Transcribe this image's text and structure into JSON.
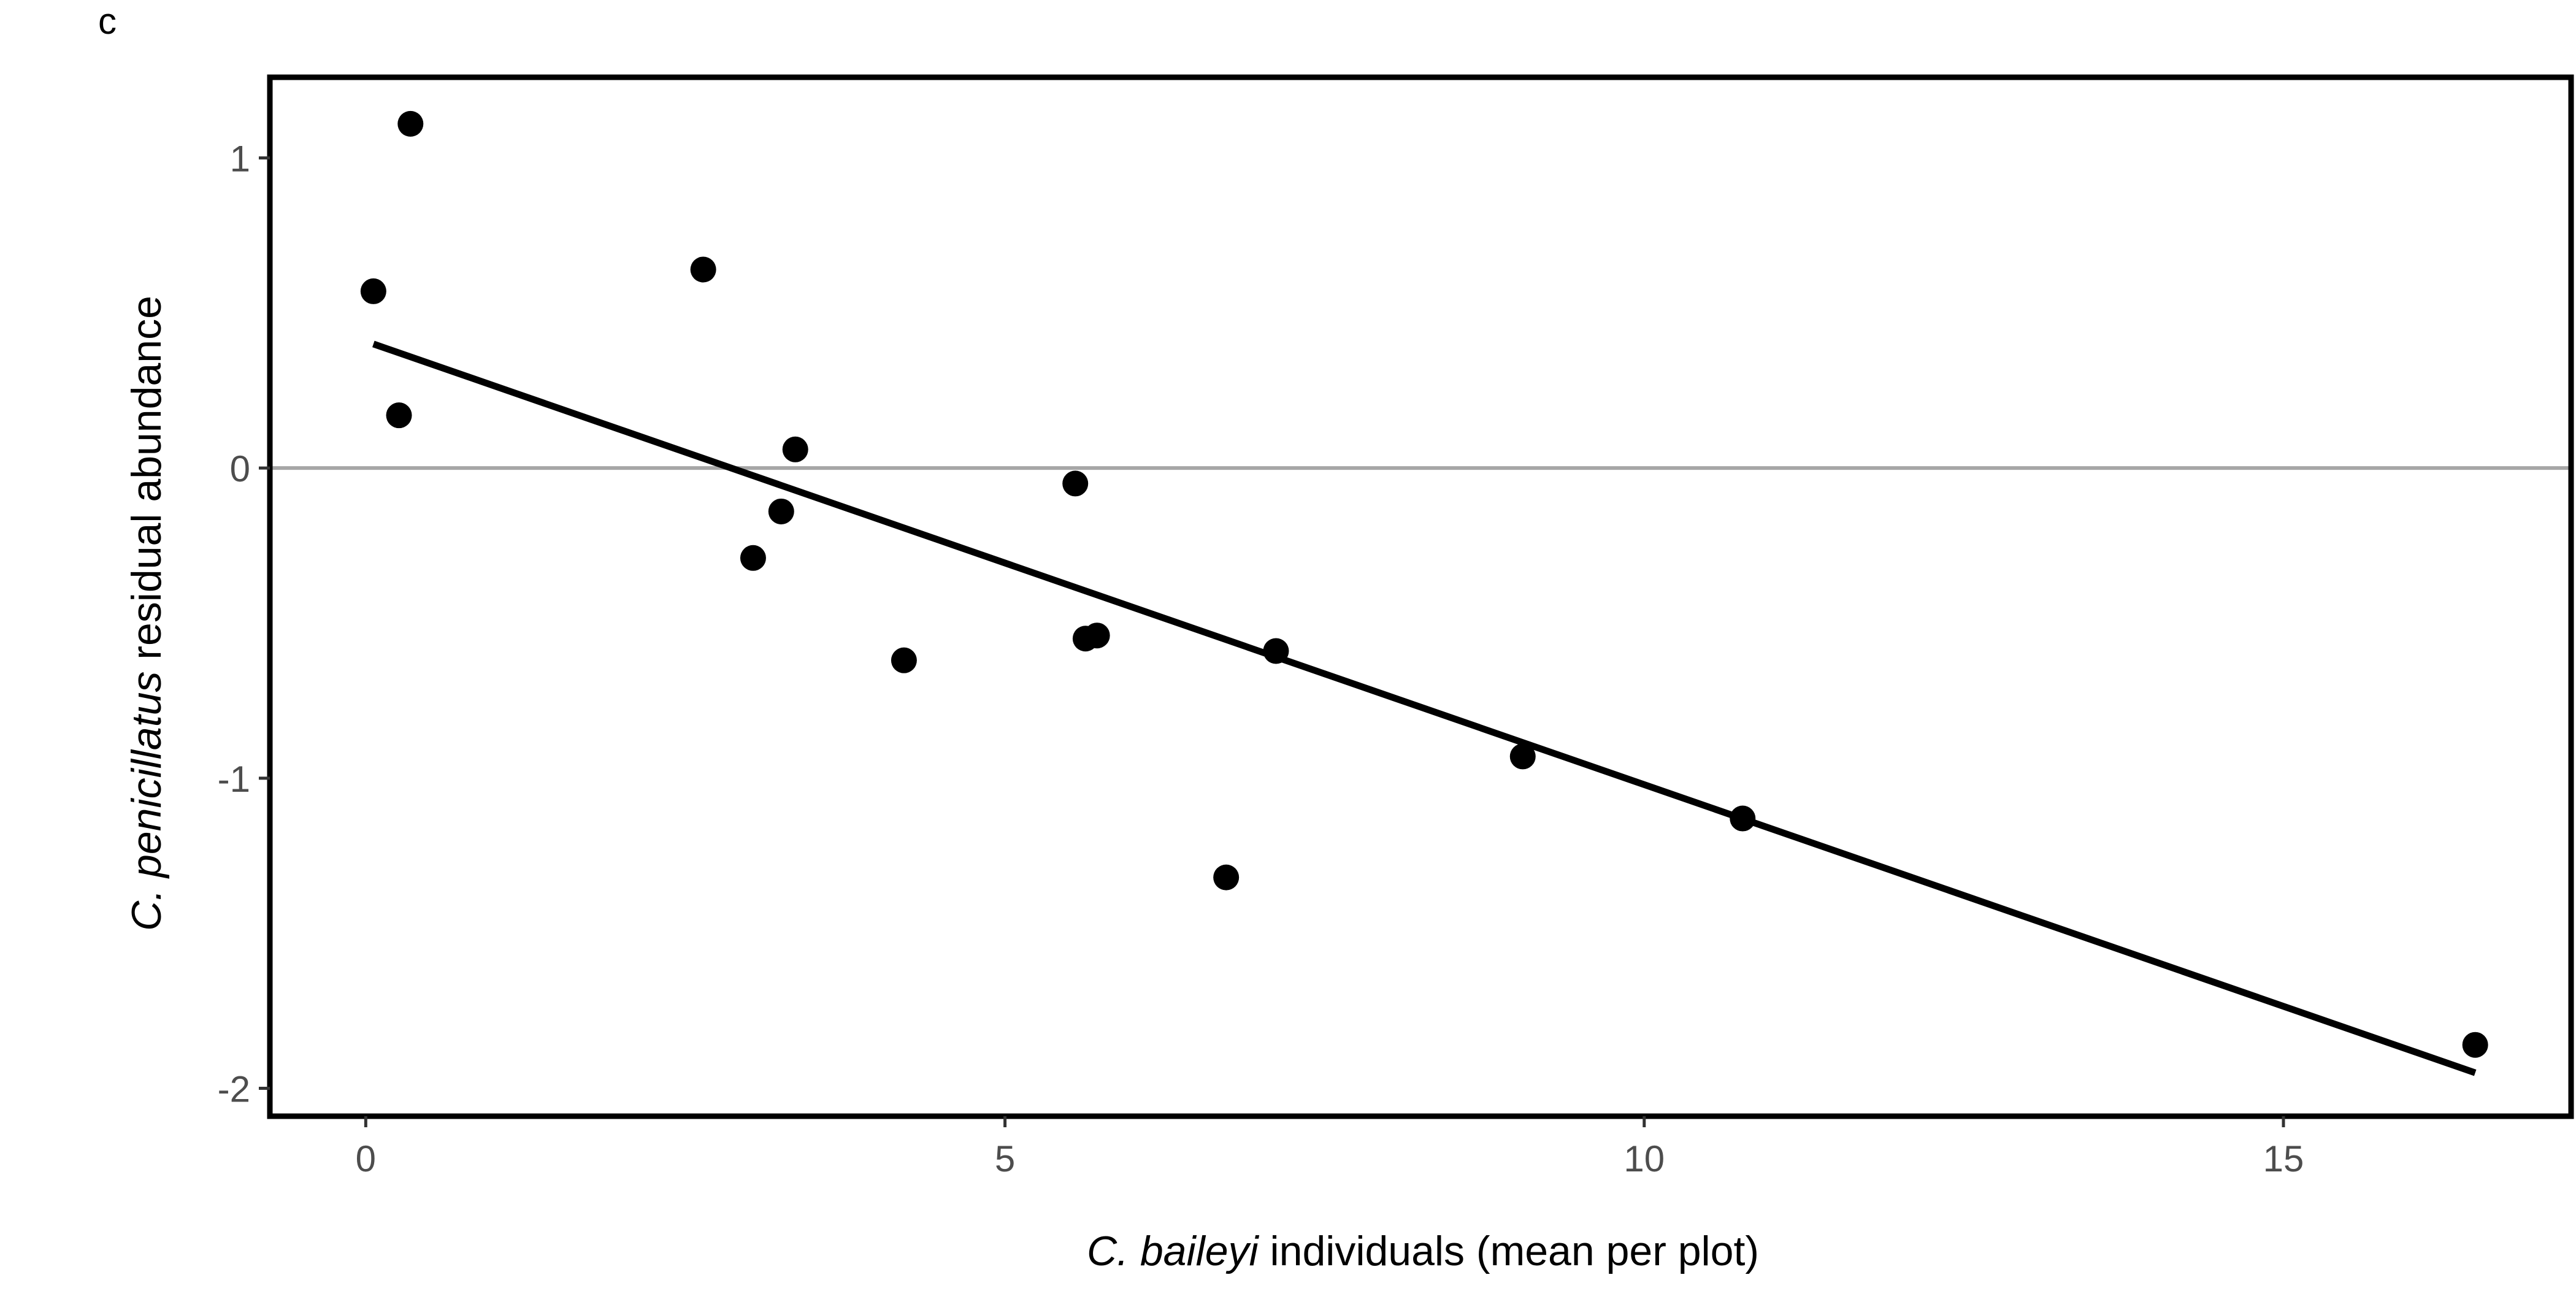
{
  "panel_label": "c",
  "chart_data": {
    "type": "scatter",
    "xlabel": {
      "italic": "C. baileyi",
      "rest": " individuals (mean per plot)"
    },
    "ylabel": {
      "italic": "C. penicillatus",
      "rest": " residual abundance"
    },
    "xlim": [
      -0.75,
      17.25
    ],
    "ylim": [
      -2.09,
      1.26
    ],
    "x_ticks": [
      0,
      5,
      10,
      15
    ],
    "x_tick_labels": [
      "0",
      "5",
      "10",
      "15"
    ],
    "y_ticks": [
      1,
      0,
      -1,
      -2
    ],
    "y_tick_labels": [
      "1",
      "0",
      "-1",
      "-2"
    ],
    "reference_line_y": 0,
    "grid": false,
    "legend": "none",
    "points": [
      {
        "x": 0.35,
        "y": 1.11
      },
      {
        "x": 0.06,
        "y": 0.57
      },
      {
        "x": 2.64,
        "y": 0.64
      },
      {
        "x": 0.26,
        "y": 0.17
      },
      {
        "x": 3.36,
        "y": 0.06
      },
      {
        "x": 3.25,
        "y": -0.14
      },
      {
        "x": 3.03,
        "y": -0.29
      },
      {
        "x": 5.55,
        "y": -0.05
      },
      {
        "x": 4.21,
        "y": -0.62
      },
      {
        "x": 5.63,
        "y": -0.55
      },
      {
        "x": 5.72,
        "y": -0.54
      },
      {
        "x": 7.12,
        "y": -0.59
      },
      {
        "x": 6.73,
        "y": -1.32
      },
      {
        "x": 9.05,
        "y": -0.93
      },
      {
        "x": 10.77,
        "y": -1.13
      },
      {
        "x": 16.5,
        "y": -1.86
      }
    ],
    "fit_line": {
      "x": [
        0.06,
        16.5
      ],
      "y": [
        0.4,
        -1.95
      ]
    },
    "colors": {
      "points": "#000000",
      "fit_line": "#000000",
      "reference_line": "#a6a6a6",
      "axis_text": "#4d4d4d",
      "frame": "#000000"
    }
  }
}
